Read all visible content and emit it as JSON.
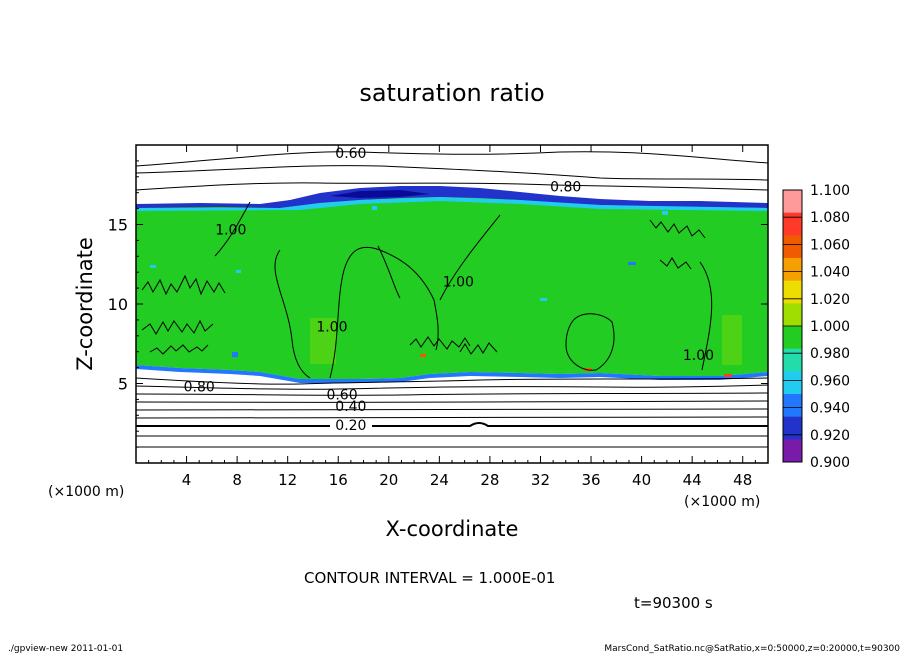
{
  "chart_data": {
    "type": "heatmap",
    "title": "saturation ratio",
    "xlabel": "X-coordinate",
    "ylabel": "Z-coordinate",
    "x_unit": "(×1000 m)",
    "x_range": [
      0,
      50
    ],
    "y_range": [
      0,
      20
    ],
    "x_ticks": [
      4,
      8,
      12,
      16,
      20,
      24,
      28,
      32,
      36,
      40,
      44,
      48
    ],
    "y_ticks": [
      5,
      10,
      15
    ],
    "colorbar": {
      "levels": [
        "1.100",
        "1.080",
        "1.060",
        "1.040",
        "1.020",
        "1.000",
        "0.980",
        "0.960",
        "0.940",
        "0.920",
        "0.900"
      ],
      "colors": [
        "#ff9a9a",
        "#ff3a2a",
        "#f05a00",
        "#f5a000",
        "#eedd00",
        "#a0dd00",
        "#22cc22",
        "#22ddaa",
        "#22ccee",
        "#2277ff",
        "#2233cc",
        "#7a1aaa"
      ]
    },
    "contour_labels": [
      {
        "text": "0.60",
        "x": 17,
        "y": 19.5
      },
      {
        "text": "0.80",
        "x": 34,
        "y": 17.4
      },
      {
        "text": "1.00",
        "x": 7.5,
        "y": 14.7
      },
      {
        "text": "1.00",
        "x": 25.5,
        "y": 11.4
      },
      {
        "text": "1.00",
        "x": 15.5,
        "y": 8.6
      },
      {
        "text": "1.00",
        "x": 44.5,
        "y": 6.8
      },
      {
        "text": "0.80",
        "x": 5,
        "y": 4.8
      },
      {
        "text": "0.60",
        "x": 16.3,
        "y": 4.3
      },
      {
        "text": "0.40",
        "x": 17,
        "y": 3.6
      },
      {
        "text": "0.20",
        "x": 17,
        "y": 2.4
      }
    ],
    "contour_interval": "CONTOUR INTERVAL = 1.000E-01",
    "time": "t=90300 s"
  },
  "footer": {
    "left": "./gpview-new  2011-01-01",
    "right": "MarsCond_SatRatio.nc@SatRatio,x=0:50000,z=0:20000,t=90300"
  }
}
